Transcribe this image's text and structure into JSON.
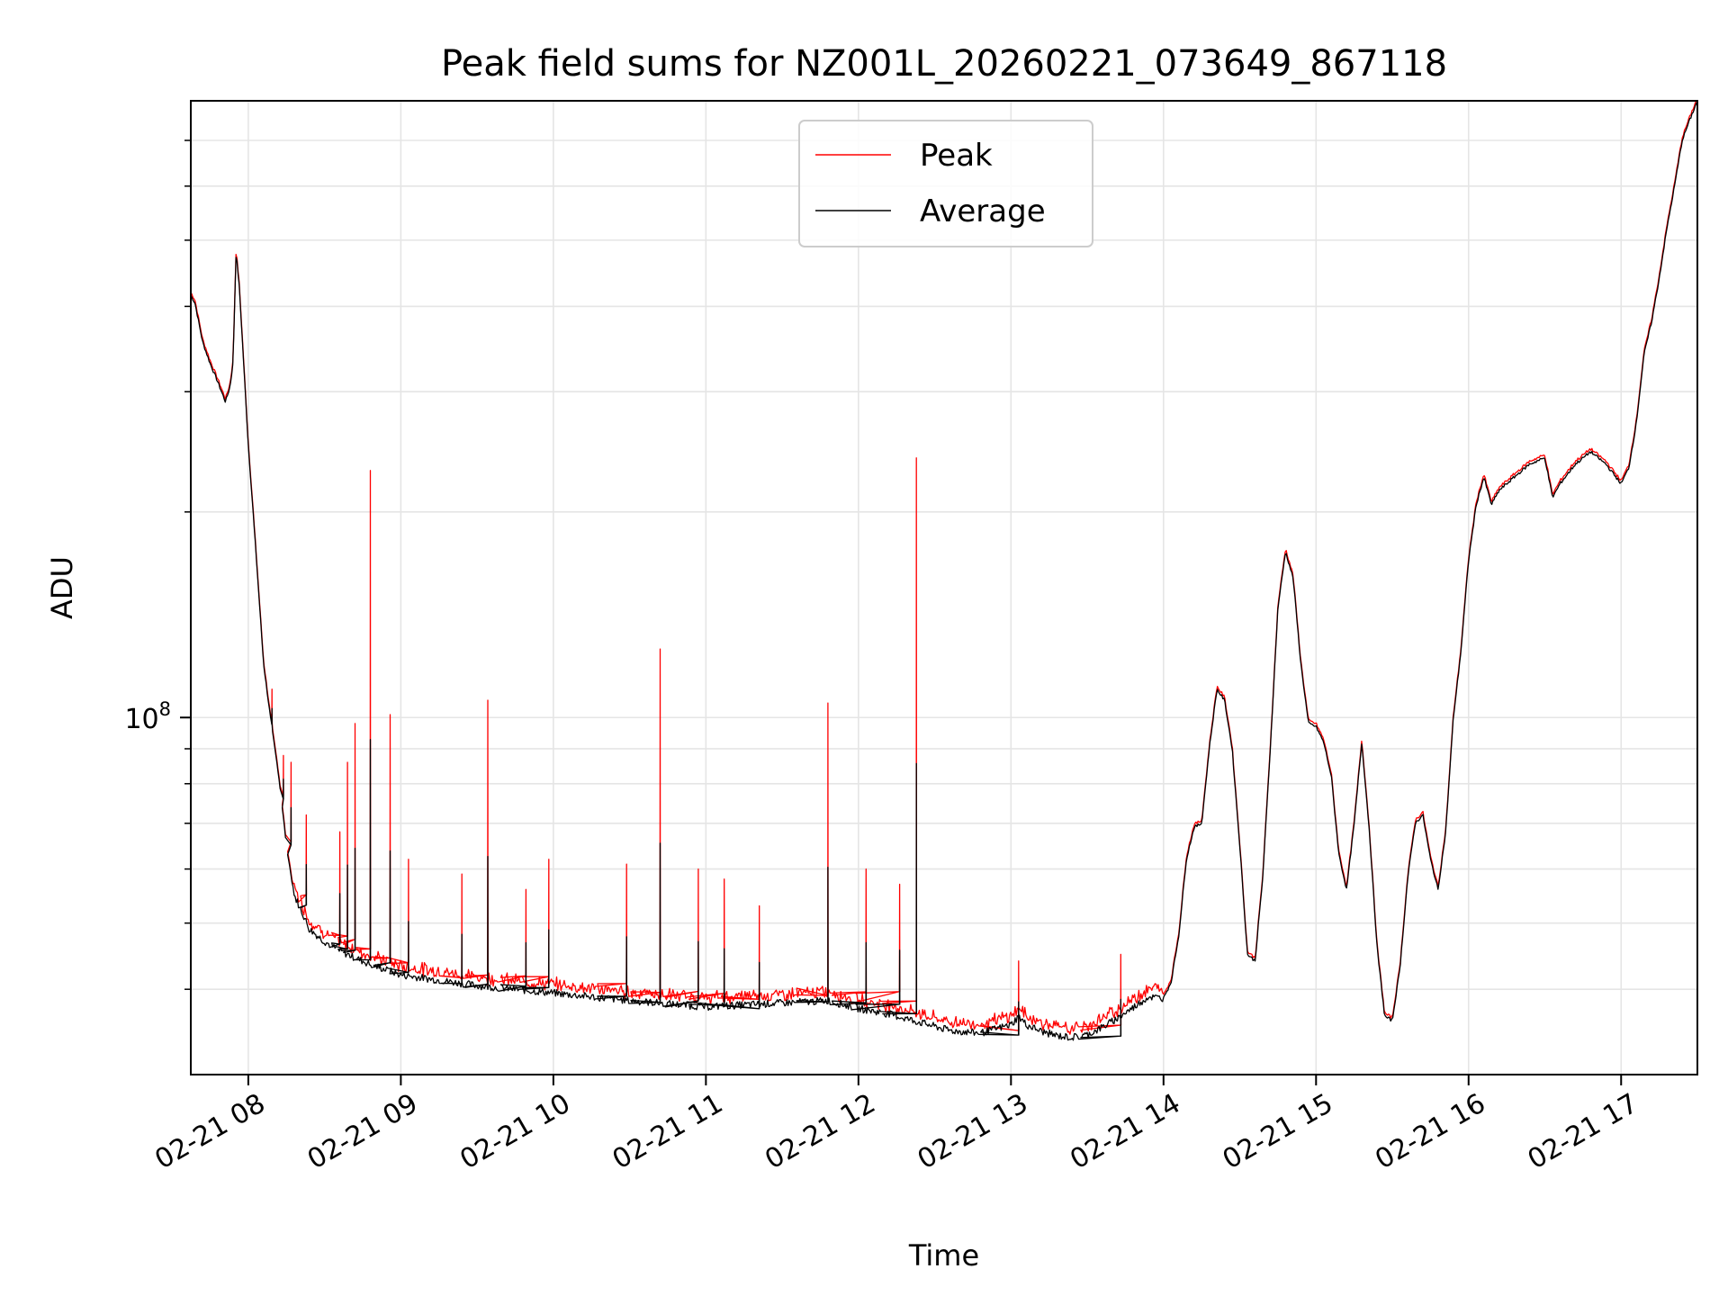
{
  "chart_data": {
    "type": "line",
    "title": "Peak field sums for NZ001L_20260221_073649_867118",
    "xlabel": "Time",
    "ylabel": "ADU",
    "y_scale": "log",
    "grid": true,
    "legend_position": "top-center",
    "xlim": [
      7.623,
      17.5
    ],
    "ylim": [
      30000000,
      800000000
    ],
    "x_ticks": [
      {
        "value": 8,
        "label": "02-21 08"
      },
      {
        "value": 9,
        "label": "02-21 09"
      },
      {
        "value": 10,
        "label": "02-21 10"
      },
      {
        "value": 11,
        "label": "02-21 11"
      },
      {
        "value": 12,
        "label": "02-21 12"
      },
      {
        "value": 13,
        "label": "02-21 13"
      },
      {
        "value": 14,
        "label": "02-21 14"
      },
      {
        "value": 15,
        "label": "02-21 15"
      },
      {
        "value": 16,
        "label": "02-21 16"
      },
      {
        "value": 17,
        "label": "02-21 17"
      }
    ],
    "y_major_ticks": [
      {
        "value": 100000000,
        "base": "10",
        "exponent": "8"
      }
    ],
    "y_minor_ticks": [
      40000000,
      50000000,
      60000000,
      70000000,
      80000000,
      90000000,
      200000000,
      300000000,
      400000000,
      500000000,
      600000000,
      700000000
    ],
    "series": [
      {
        "name": "Peak",
        "color": "#ff0000"
      },
      {
        "name": "Average",
        "color": "#000000"
      }
    ],
    "average_profile": [
      [
        7.623,
        415000000
      ],
      [
        7.65,
        405000000
      ],
      [
        7.7,
        355000000
      ],
      [
        7.75,
        330000000
      ],
      [
        7.8,
        310000000
      ],
      [
        7.85,
        290000000
      ],
      [
        7.88,
        305000000
      ],
      [
        7.9,
        330000000
      ],
      [
        7.92,
        480000000
      ],
      [
        7.94,
        430000000
      ],
      [
        7.96,
        360000000
      ],
      [
        8.0,
        250000000
      ],
      [
        8.05,
        175000000
      ],
      [
        8.1,
        120000000
      ],
      [
        8.15,
        98000000
      ],
      [
        8.2,
        82000000
      ],
      [
        8.25,
        65000000
      ],
      [
        8.3,
        55000000
      ],
      [
        8.35,
        52000000
      ],
      [
        8.4,
        49000000
      ],
      [
        8.5,
        47000000
      ],
      [
        8.6,
        45500000
      ],
      [
        8.7,
        44500000
      ],
      [
        8.8,
        43500000
      ],
      [
        9.0,
        42000000
      ],
      [
        9.5,
        40500000
      ],
      [
        10.0,
        39500000
      ],
      [
        10.5,
        38500000
      ],
      [
        11.0,
        37700000
      ],
      [
        11.5,
        38200000
      ],
      [
        11.8,
        38500000
      ],
      [
        12.0,
        37500000
      ],
      [
        12.2,
        36800000
      ],
      [
        12.4,
        35800000
      ],
      [
        12.6,
        34800000
      ],
      [
        12.8,
        34500000
      ],
      [
        13.0,
        35500000
      ],
      [
        13.05,
        36500000
      ],
      [
        13.1,
        35500000
      ],
      [
        13.2,
        34700000
      ],
      [
        13.3,
        34200000
      ],
      [
        13.4,
        34000000
      ],
      [
        13.5,
        34300000
      ],
      [
        13.6,
        35200000
      ],
      [
        13.7,
        36300000
      ],
      [
        13.8,
        37600000
      ],
      [
        13.9,
        39000000
      ],
      [
        14.0,
        38800000
      ],
      [
        14.05,
        41000000
      ],
      [
        14.1,
        48000000
      ],
      [
        14.15,
        62000000
      ],
      [
        14.2,
        69000000
      ],
      [
        14.25,
        70000000
      ],
      [
        14.3,
        90000000
      ],
      [
        14.35,
        110000000
      ],
      [
        14.4,
        106000000
      ],
      [
        14.45,
        90000000
      ],
      [
        14.5,
        65000000
      ],
      [
        14.55,
        45000000
      ],
      [
        14.6,
        44000000
      ],
      [
        14.65,
        58000000
      ],
      [
        14.7,
        90000000
      ],
      [
        14.75,
        145000000
      ],
      [
        14.8,
        175000000
      ],
      [
        14.85,
        160000000
      ],
      [
        14.9,
        120000000
      ],
      [
        14.95,
        98000000
      ],
      [
        15.0,
        97000000
      ],
      [
        15.05,
        92000000
      ],
      [
        15.1,
        82000000
      ],
      [
        15.15,
        63000000
      ],
      [
        15.2,
        56000000
      ],
      [
        15.25,
        70000000
      ],
      [
        15.3,
        92000000
      ],
      [
        15.35,
        68000000
      ],
      [
        15.4,
        46000000
      ],
      [
        15.45,
        36500000
      ],
      [
        15.5,
        36000000
      ],
      [
        15.55,
        43000000
      ],
      [
        15.6,
        58000000
      ],
      [
        15.65,
        70000000
      ],
      [
        15.7,
        72000000
      ],
      [
        15.75,
        62000000
      ],
      [
        15.8,
        56000000
      ],
      [
        15.85,
        68000000
      ],
      [
        15.9,
        100000000
      ],
      [
        15.95,
        125000000
      ],
      [
        16.0,
        170000000
      ],
      [
        16.05,
        205000000
      ],
      [
        16.1,
        225000000
      ],
      [
        16.15,
        205000000
      ],
      [
        16.2,
        215000000
      ],
      [
        16.3,
        225000000
      ],
      [
        16.4,
        235000000
      ],
      [
        16.5,
        240000000
      ],
      [
        16.55,
        210000000
      ],
      [
        16.6,
        220000000
      ],
      [
        16.7,
        235000000
      ],
      [
        16.8,
        245000000
      ],
      [
        16.9,
        235000000
      ],
      [
        17.0,
        220000000
      ],
      [
        17.05,
        232000000
      ],
      [
        17.1,
        270000000
      ],
      [
        17.15,
        340000000
      ],
      [
        17.2,
        380000000
      ],
      [
        17.25,
        440000000
      ],
      [
        17.3,
        520000000
      ],
      [
        17.35,
        600000000
      ],
      [
        17.4,
        700000000
      ],
      [
        17.45,
        750000000
      ],
      [
        17.5,
        800000000
      ]
    ],
    "peak_spikes": [
      [
        8.155,
        110000000
      ],
      [
        8.23,
        88000000
      ],
      [
        8.28,
        86000000
      ],
      [
        8.38,
        72000000
      ],
      [
        8.6,
        68000000
      ],
      [
        8.65,
        86000000
      ],
      [
        8.7,
        98000000
      ],
      [
        8.8,
        230000000
      ],
      [
        8.93,
        101000000
      ],
      [
        9.05,
        62000000
      ],
      [
        9.4,
        59000000
      ],
      [
        9.57,
        106000000
      ],
      [
        9.82,
        56000000
      ],
      [
        9.97,
        62000000
      ],
      [
        10.7,
        126000000
      ],
      [
        11.8,
        105000000
      ],
      [
        12.38,
        240000000
      ],
      [
        12.05,
        60000000
      ],
      [
        13.05,
        44000000
      ],
      [
        13.72,
        45000000
      ],
      [
        10.48,
        61000000
      ],
      [
        10.95,
        60000000
      ],
      [
        11.12,
        58000000
      ],
      [
        11.35,
        53000000
      ],
      [
        12.27,
        57000000
      ]
    ]
  }
}
